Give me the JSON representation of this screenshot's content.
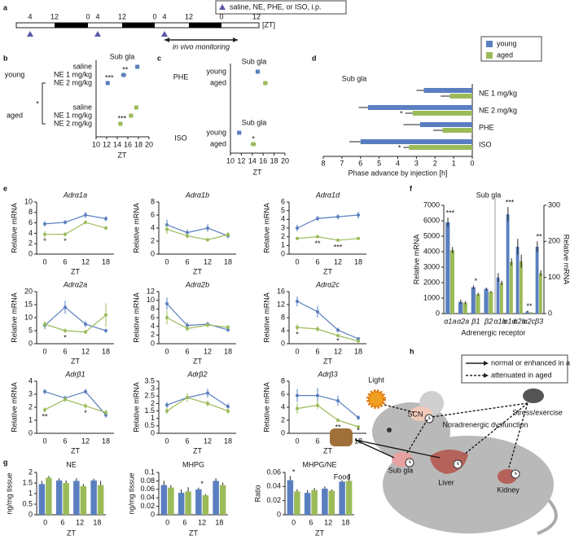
{
  "panel_labels": [
    "a",
    "b",
    "c",
    "d",
    "e",
    "f",
    "g",
    "h"
  ],
  "timeline": {
    "ticks": [
      "4",
      "12",
      "0",
      "4",
      "12",
      "0",
      "4",
      "12",
      "0",
      "12"
    ],
    "unit": "[ZT]",
    "legend": "saline, NE, PHE, or ISO, i.p.",
    "monitoring": "in vivo monitoring"
  },
  "chart_data": [
    {
      "type": "dot",
      "title": "Sub gla",
      "xlabel": "ZT",
      "xlim": [
        10,
        20
      ],
      "xticks": [
        10,
        12,
        14,
        16,
        18,
        20
      ],
      "categories": [
        "saline",
        "NE 1 mg/kg",
        "NE 2 mg/kg"
      ],
      "series": [
        {
          "name": "young",
          "color": "#5a7fc0",
          "values": [
            17.8,
            15.2,
            12.2
          ],
          "errors": [
            0.4,
            0.5,
            0.3
          ],
          "significance": [
            null,
            "**",
            "***"
          ]
        },
        {
          "name": "aged",
          "color": "#9bbb59",
          "values": [
            17.6,
            16.6,
            14.6
          ],
          "errors": [
            0.3,
            0.4,
            0.4
          ],
          "significance": [
            null,
            null,
            "***"
          ]
        }
      ],
      "bracket_label": "*"
    },
    {
      "type": "dot_groups",
      "xlabel": "ZT",
      "xlim": [
        10,
        20
      ],
      "xticks": [
        10,
        12,
        14,
        16,
        18,
        20
      ],
      "categories": [
        "young",
        "aged"
      ],
      "colors": [
        "#5a7fc0",
        "#9bbb59"
      ],
      "groups": [
        {
          "name": "PHE",
          "title": "Sub gla",
          "values": [
            15.0,
            16.4
          ],
          "errors": [
            0.4,
            0.4
          ],
          "significance": [
            null,
            null
          ]
        },
        {
          "name": "ISO",
          "title": "Sub gla",
          "values": [
            11.6,
            14.2
          ],
          "errors": [
            0.4,
            0.5
          ],
          "significance": [
            null,
            "*"
          ]
        }
      ]
    },
    {
      "type": "hbar",
      "title": "Sub gla",
      "xlabel": "Phase advance by injection [h]",
      "xlim": [
        8,
        0
      ],
      "xticks": [
        8,
        7,
        6,
        5,
        4,
        3,
        2,
        1,
        0
      ],
      "categories": [
        "NE 1 mg/kg",
        "NE 2 mg/kg",
        "PHE",
        "ISO"
      ],
      "series": [
        {
          "name": "young",
          "color": "#5a7fc0",
          "values": [
            2.6,
            5.6,
            2.8,
            6.0
          ],
          "errors": [
            0.4,
            0.5,
            0.9,
            0.6
          ],
          "significance": [
            null,
            null,
            null,
            null
          ]
        },
        {
          "name": "aged",
          "color": "#9bbb59",
          "values": [
            1.2,
            3.2,
            1.6,
            3.4
          ],
          "errors": [
            0.5,
            0.4,
            0.5,
            0.3
          ],
          "significance": [
            null,
            "*",
            null,
            "*"
          ]
        }
      ]
    },
    {
      "type": "line",
      "title": "Adrα1a",
      "xlabel": "ZT",
      "ylabel": "Relative mRNA",
      "x": [
        0,
        6,
        12,
        18
      ],
      "ylim": [
        0,
        10
      ],
      "yticks": [
        0,
        2,
        4,
        6,
        8,
        10
      ],
      "series": [
        {
          "color": "#5a7fc0",
          "values": [
            5.8,
            6.1,
            7.5,
            6.8
          ],
          "errors": [
            0.5,
            0.4,
            0.6,
            0.5
          ]
        },
        {
          "color": "#9bbb59",
          "values": [
            3.8,
            3.8,
            6.1,
            5.0
          ],
          "errors": [
            0.6,
            0.4,
            0.4,
            0.4
          ]
        }
      ],
      "significance": [
        "*",
        "*",
        null,
        null
      ]
    },
    {
      "type": "line",
      "title": "Adrα1b",
      "xlabel": "ZT",
      "ylabel": "Relative mRNA",
      "x": [
        0,
        6,
        12,
        18
      ],
      "ylim": [
        0,
        8
      ],
      "yticks": [
        0,
        2,
        4,
        6,
        8
      ],
      "series": [
        {
          "color": "#5a7fc0",
          "values": [
            4.5,
            3.3,
            4.0,
            2.8
          ],
          "errors": [
            0.8,
            0.5,
            0.6,
            0.4
          ]
        },
        {
          "color": "#9bbb59",
          "values": [
            3.8,
            2.8,
            2.2,
            3.0
          ],
          "errors": [
            0.7,
            0.4,
            0.3,
            0.4
          ]
        }
      ],
      "significance": [
        null,
        null,
        null,
        null
      ]
    },
    {
      "type": "line",
      "title": "Adrα1d",
      "xlabel": "ZT",
      "ylabel": "Relative mRNA",
      "x": [
        0,
        6,
        12,
        18
      ],
      "ylim": [
        0,
        6
      ],
      "yticks": [
        0,
        1,
        2,
        3,
        4,
        5,
        6
      ],
      "series": [
        {
          "color": "#5a7fc0",
          "values": [
            3.0,
            4.1,
            4.3,
            4.5
          ],
          "errors": [
            0.4,
            0.3,
            0.3,
            0.4
          ]
        },
        {
          "color": "#9bbb59",
          "values": [
            1.8,
            2.0,
            1.6,
            1.8
          ],
          "errors": [
            0.2,
            0.2,
            0.1,
            0.2
          ]
        }
      ],
      "significance": [
        null,
        "**",
        "***",
        null
      ]
    },
    {
      "type": "line",
      "title": "Adrα2a",
      "xlabel": "ZT",
      "ylabel": "Relative mRNA",
      "x": [
        0,
        6,
        12,
        18
      ],
      "ylim": [
        0,
        20
      ],
      "yticks": [
        0,
        5,
        10,
        15,
        20
      ],
      "series": [
        {
          "color": "#5a7fc0",
          "values": [
            7.0,
            14.0,
            7.5,
            5.0
          ],
          "errors": [
            1.5,
            2.5,
            1.2,
            0.8
          ]
        },
        {
          "color": "#9bbb59",
          "values": [
            7.5,
            5.0,
            4.5,
            11.0
          ],
          "errors": [
            1.2,
            0.8,
            0.8,
            4.5
          ]
        }
      ],
      "significance": [
        null,
        "*",
        null,
        null
      ]
    },
    {
      "type": "line",
      "title": "Adrα2b",
      "xlabel": "ZT",
      "ylabel": "Relative mRNA",
      "x": [
        0,
        6,
        12,
        18
      ],
      "ylim": [
        0,
        12
      ],
      "yticks": [
        0,
        2,
        4,
        6,
        8,
        10,
        12
      ],
      "series": [
        {
          "color": "#5a7fc0",
          "values": [
            9.2,
            4.2,
            4.5,
            3.2
          ],
          "errors": [
            1.4,
            0.8,
            0.6,
            0.5
          ]
        },
        {
          "color": "#9bbb59",
          "values": [
            6.0,
            3.5,
            4.3,
            3.8
          ],
          "errors": [
            1.6,
            0.6,
            0.5,
            0.5
          ]
        }
      ],
      "significance": [
        null,
        null,
        null,
        null
      ]
    },
    {
      "type": "line",
      "title": "Adrα2c",
      "xlabel": "ZT",
      "ylabel": "Relative mRNA",
      "x": [
        0,
        6,
        12,
        18
      ],
      "ylim": [
        0,
        16
      ],
      "yticks": [
        0,
        4,
        8,
        12,
        16
      ],
      "series": [
        {
          "color": "#5a7fc0",
          "values": [
            13.0,
            9.8,
            4.2,
            1.5
          ],
          "errors": [
            1.5,
            1.8,
            0.8,
            0.4
          ]
        },
        {
          "color": "#9bbb59",
          "values": [
            5.0,
            4.5,
            2.5,
            0.8
          ],
          "errors": [
            1.0,
            0.8,
            0.5,
            0.2
          ]
        }
      ],
      "significance": [
        "*",
        null,
        "*",
        null
      ]
    },
    {
      "type": "line",
      "title": "Adrβ1",
      "xlabel": "ZT",
      "ylabel": "Relative mRNA",
      "x": [
        0,
        6,
        12,
        18
      ],
      "ylim": [
        0,
        4
      ],
      "yticks": [
        0,
        1,
        2,
        3,
        4
      ],
      "series": [
        {
          "color": "#5a7fc0",
          "values": [
            3.2,
            2.7,
            3.2,
            1.4
          ],
          "errors": [
            0.2,
            0.2,
            0.2,
            0.2
          ]
        },
        {
          "color": "#9bbb59",
          "values": [
            1.8,
            2.6,
            2.1,
            1.6
          ],
          "errors": [
            0.2,
            0.2,
            0.2,
            0.2
          ]
        }
      ],
      "significance": [
        "**",
        null,
        "*",
        null
      ]
    },
    {
      "type": "line",
      "title": "Adrβ2",
      "xlabel": "ZT",
      "ylabel": "Relative mRNA",
      "x": [
        0,
        6,
        12,
        18
      ],
      "ylim": [
        0,
        3.5
      ],
      "yticks": [
        0,
        0.5,
        1,
        1.5,
        2,
        2.5,
        3,
        3.5
      ],
      "series": [
        {
          "color": "#5a7fc0",
          "values": [
            1.9,
            2.4,
            2.7,
            1.8
          ],
          "errors": [
            0.2,
            0.2,
            0.3,
            0.2
          ]
        },
        {
          "color": "#9bbb59",
          "values": [
            1.5,
            2.4,
            2.0,
            1.5
          ],
          "errors": [
            0.2,
            0.3,
            0.2,
            0.2
          ]
        }
      ],
      "significance": [
        null,
        null,
        null,
        null
      ]
    },
    {
      "type": "line",
      "title": "Adrβ3",
      "xlabel": "ZT",
      "ylabel": "Relative mRNA",
      "x": [
        0,
        6,
        12,
        18
      ],
      "ylim": [
        0,
        8
      ],
      "yticks": [
        0,
        2,
        4,
        6,
        8
      ],
      "series": [
        {
          "color": "#5a7fc0",
          "values": [
            5.8,
            5.8,
            5.0,
            2.4
          ],
          "errors": [
            1.0,
            1.2,
            0.8,
            0.4
          ]
        },
        {
          "color": "#9bbb59",
          "values": [
            3.8,
            4.3,
            2.0,
            1.0
          ],
          "errors": [
            0.8,
            0.6,
            0.3,
            0.2
          ]
        }
      ],
      "significance": [
        null,
        null,
        "**",
        "*"
      ]
    },
    {
      "type": "bar2",
      "title": "Sub gla",
      "xlabel": "Adrenergic receptor",
      "ylabel": "Relative mRNA",
      "y2label": "Relative mRNA",
      "ylim": [
        0,
        7000
      ],
      "yticks": [
        0,
        1000,
        2000,
        3000,
        4000,
        5000,
        6000,
        7000
      ],
      "y2lim": [
        0,
        300
      ],
      "y2ticks": [
        0,
        100,
        200,
        300
      ],
      "groups": [
        {
          "axis": "y",
          "categories": [
            "α1a",
            "α2a",
            "β1",
            "β2"
          ],
          "significance": [
            "***",
            null,
            "*",
            null
          ],
          "series": [
            {
              "color": "#5a7fc0",
              "values": [
                5900,
                750,
                1700,
                1600
              ],
              "errors": [
                300,
                150,
                120,
                80
              ]
            },
            {
              "color": "#9bbb59",
              "values": [
                4100,
                700,
                1250,
                1400
              ],
              "errors": [
                200,
                100,
                100,
                60
              ]
            }
          ]
        },
        {
          "axis": "y2",
          "categories": [
            "α1b",
            "α1d",
            "α2b",
            "α2c",
            "β3"
          ],
          "significance": [
            null,
            "***",
            null,
            "**",
            "**"
          ],
          "series": [
            {
              "color": "#5a7fc0",
              "values": [
                100,
                275,
                185,
                6,
                185
              ],
              "errors": [
                12,
                20,
                22,
                2,
                15
              ]
            },
            {
              "color": "#9bbb59",
              "values": [
                85,
                143,
                145,
                3,
                112
              ],
              "errors": [
                6,
                10,
                18,
                1,
                8
              ]
            }
          ]
        }
      ]
    },
    {
      "type": "bar",
      "title": "NE",
      "xlabel": "ZT",
      "ylabel": "ng/mg tissue",
      "categories": [
        "0",
        "6",
        "12",
        "18"
      ],
      "ylim": [
        0,
        2
      ],
      "yticks": [
        0,
        0.5,
        1,
        1.5,
        2
      ],
      "series": [
        {
          "color": "#5a7fc0",
          "values": [
            1.45,
            1.62,
            1.6,
            1.62
          ],
          "errors": [
            0.15,
            0.1,
            0.12,
            0.08
          ]
        },
        {
          "color": "#9bbb59",
          "values": [
            1.75,
            1.5,
            1.35,
            1.4
          ],
          "errors": [
            0.08,
            0.12,
            0.1,
            0.2
          ]
        }
      ],
      "significance": [
        null,
        null,
        null,
        null
      ]
    },
    {
      "type": "bar",
      "title": "MHPG",
      "xlabel": "ZT",
      "ylabel": "ng/mg tissue",
      "categories": [
        "0",
        "6",
        "12",
        "18"
      ],
      "ylim": [
        0,
        0.1
      ],
      "yticks": [
        0,
        0.02,
        0.04,
        0.06,
        0.08,
        0.1
      ],
      "series": [
        {
          "color": "#5a7fc0",
          "values": [
            0.07,
            0.052,
            0.06,
            0.08
          ],
          "errors": [
            0.01,
            0.008,
            0.004,
            0.006
          ]
        },
        {
          "color": "#9bbb59",
          "values": [
            0.064,
            0.055,
            0.046,
            0.07
          ],
          "errors": [
            0.006,
            0.01,
            0.003,
            0.006
          ]
        }
      ],
      "significance": [
        null,
        null,
        "*",
        null
      ]
    },
    {
      "type": "bar",
      "title": "MHPG/NE",
      "xlabel": "ZT",
      "ylabel": "Ratio",
      "categories": [
        "0",
        "6",
        "12",
        "18"
      ],
      "ylim": [
        0,
        0.06
      ],
      "yticks": [
        0,
        0.02,
        0.04,
        0.06
      ],
      "series": [
        {
          "color": "#5a7fc0",
          "values": [
            0.049,
            0.031,
            0.037,
            0.047
          ],
          "errors": [
            0.006,
            0.004,
            0.003,
            0.002
          ]
        },
        {
          "color": "#9bbb59",
          "values": [
            0.033,
            0.035,
            0.034,
            0.048
          ],
          "errors": [
            0.003,
            0.003,
            0.002,
            0.01
          ]
        }
      ],
      "significance": [
        "*",
        null,
        null,
        null
      ]
    }
  ],
  "diagram": {
    "legend": [
      "normal or enhanced in aged",
      "attenuated in aged"
    ],
    "nodes": [
      "Light",
      "Stress/exercise",
      "Food",
      "SCN",
      "Sub gla",
      "Liver",
      "Kidney",
      "Noradrenergic dysfunction"
    ]
  }
}
